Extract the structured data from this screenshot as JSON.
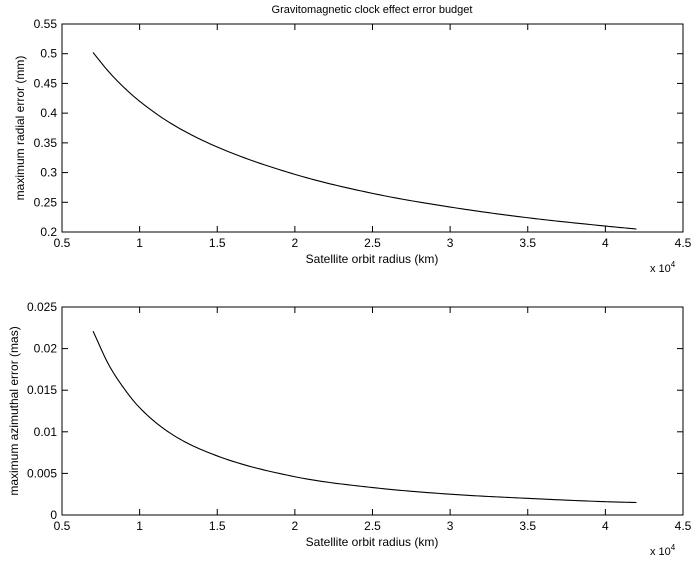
{
  "chart_data": [
    {
      "type": "line",
      "title": "Gravitomagnetic clock effect error budget",
      "xlabel": "Satellite orbit radius (km)",
      "ylabel": "maximum radial error  (mm)",
      "x_exponent_base": "x 10",
      "x_exponent_power": "4",
      "xlim": [
        0.5,
        4.5
      ],
      "ylim": [
        0.2,
        0.55
      ],
      "xticks": [
        0.5,
        1,
        1.5,
        2,
        2.5,
        3,
        3.5,
        4,
        4.5
      ],
      "xtick_labels": [
        "0.5",
        "1",
        "1.5",
        "2",
        "2.5",
        "3",
        "3.5",
        "4",
        "4.5"
      ],
      "yticks": [
        0.2,
        0.25,
        0.3,
        0.35,
        0.4,
        0.45,
        0.5,
        0.55
      ],
      "ytick_labels": [
        "0.2",
        "0.25",
        "0.3",
        "0.35",
        "0.4",
        "0.45",
        "0.5",
        "0.55"
      ],
      "grid": false,
      "series": [
        {
          "x": [
            0.7,
            0.8,
            0.9,
            1.0,
            1.2,
            1.5,
            2.0,
            2.5,
            3.0,
            3.5,
            4.0,
            4.2
          ],
          "y": [
            0.502,
            0.47,
            0.443,
            0.42,
            0.383,
            0.343,
            0.297,
            0.265,
            0.242,
            0.224,
            0.21,
            0.205
          ]
        }
      ]
    },
    {
      "type": "line",
      "xlabel": "Satellite orbit radius (km)",
      "ylabel": "maximum azimuthal error  (mas)",
      "x_exponent_base": "x 10",
      "x_exponent_power": "4",
      "xlim": [
        0.5,
        4.5
      ],
      "ylim": [
        0,
        0.025
      ],
      "xticks": [
        0.5,
        1,
        1.5,
        2,
        2.5,
        3,
        3.5,
        4,
        4.5
      ],
      "xtick_labels": [
        "0.5",
        "1",
        "1.5",
        "2",
        "2.5",
        "3",
        "3.5",
        "4",
        "4.5"
      ],
      "yticks": [
        0,
        0.005,
        0.01,
        0.015,
        0.02,
        0.025
      ],
      "ytick_labels": [
        "0",
        "0.005",
        "0.01",
        "0.015",
        "0.02",
        "0.025"
      ],
      "grid": false,
      "series": [
        {
          "x": [
            0.7,
            0.8,
            0.9,
            1.0,
            1.2,
            1.5,
            2.0,
            2.5,
            3.0,
            3.5,
            4.0,
            4.2
          ],
          "y": [
            0.0221,
            0.0181,
            0.0152,
            0.0129,
            0.0098,
            0.0071,
            0.0046,
            0.0033,
            0.0025,
            0.002,
            0.0016,
            0.0015
          ]
        }
      ]
    }
  ]
}
